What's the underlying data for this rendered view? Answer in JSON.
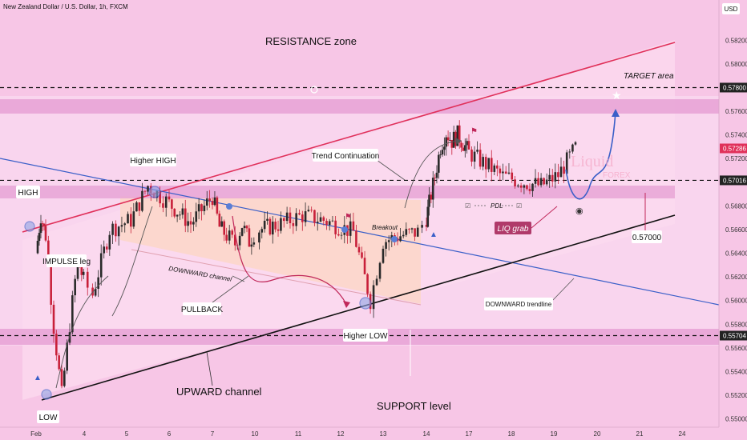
{
  "header": {
    "symbol": "New Zealand Dollar / U.S. Dollar, 1h, FXCM",
    "currency": "USD"
  },
  "watermark": {
    "line1": "Liquid",
    "line2": "FOREX"
  },
  "chart_data": {
    "type": "candlestick",
    "y_ticks": [
      0.55,
      0.552,
      0.554,
      0.556,
      0.558,
      0.56,
      0.562,
      0.564,
      0.566,
      0.568,
      0.57,
      0.572,
      0.574,
      0.576,
      0.578,
      0.58,
      0.582,
      0.584
    ],
    "y_tick_labels": [
      "0.55000",
      "0.55200",
      "0.55400",
      "0.55600",
      "0.55800",
      "0.56000",
      "0.56200",
      "0.56400",
      "0.56600",
      "0.56800",
      "0.57000",
      "0.57200",
      "0.57400",
      "0.57600",
      "0.57800",
      "0.58000",
      "0.58200",
      "0.58400"
    ],
    "ylim": [
      0.5493,
      0.5854
    ],
    "x_ticks": [
      {
        "label": "Feb",
        "day": 1
      },
      {
        "label": "4",
        "day": 4
      },
      {
        "label": "5",
        "day": 5
      },
      {
        "label": "6",
        "day": 6
      },
      {
        "label": "7",
        "day": 7
      },
      {
        "label": "10",
        "day": 10
      },
      {
        "label": "11",
        "day": 11
      },
      {
        "label": "12",
        "day": 12
      },
      {
        "label": "13",
        "day": 13
      },
      {
        "label": "14",
        "day": 14
      },
      {
        "label": "17",
        "day": 17
      },
      {
        "label": "18",
        "day": 18
      },
      {
        "label": "19",
        "day": 19
      },
      {
        "label": "20",
        "day": 20
      },
      {
        "label": "21",
        "day": 21
      },
      {
        "label": "24",
        "day": 24
      }
    ],
    "price_tags": [
      {
        "label": "0.57800",
        "value": 0.578,
        "style": "dark"
      },
      {
        "label": "0.57286",
        "value": 0.57286,
        "style": "red"
      },
      {
        "label": "0.57016",
        "value": 0.57016,
        "style": "dark"
      },
      {
        "label": "0.55704",
        "value": 0.55704,
        "style": "dark"
      }
    ],
    "key_levels": [
      0.578,
      0.57016,
      0.55704
    ],
    "price_path": [
      [
        1,
        0.564
      ],
      [
        1.3,
        0.5672
      ],
      [
        1.6,
        0.5655
      ],
      [
        2.1,
        0.5578
      ],
      [
        2.6,
        0.552
      ],
      [
        3.1,
        0.558
      ],
      [
        3.6,
        0.5635
      ],
      [
        4.2,
        0.5605
      ],
      [
        4.6,
        0.566
      ],
      [
        5.1,
        0.5668
      ],
      [
        5.5,
        0.5697
      ],
      [
        6.0,
        0.5682
      ],
      [
        6.5,
        0.5665
      ],
      [
        7.0,
        0.5688
      ],
      [
        7.5,
        0.5662
      ],
      [
        8.0,
        0.5655
      ],
      [
        8.6,
        0.5648
      ],
      [
        9.1,
        0.5664
      ],
      [
        9.6,
        0.565
      ],
      [
        10.1,
        0.566
      ],
      [
        10.6,
        0.5665
      ],
      [
        11.1,
        0.5672
      ],
      [
        11.6,
        0.5668
      ],
      [
        12.3,
        0.5658
      ],
      [
        12.7,
        0.56
      ],
      [
        13.0,
        0.565
      ],
      [
        13.4,
        0.5655
      ],
      [
        13.8,
        0.5658
      ],
      [
        14.2,
        0.5682
      ],
      [
        14.6,
        0.5705
      ],
      [
        15.0,
        0.573
      ],
      [
        15.4,
        0.5742
      ],
      [
        15.8,
        0.5735
      ],
      [
        16.2,
        0.574
      ],
      [
        16.6,
        0.5733
      ],
      [
        17.0,
        0.5725
      ],
      [
        17.4,
        0.5715
      ],
      [
        17.8,
        0.5705
      ],
      [
        18.3,
        0.57
      ],
      [
        18.7,
        0.5697
      ],
      [
        19.1,
        0.5706
      ],
      [
        19.5,
        0.5729
      ]
    ],
    "annotations": {
      "resistance_zone": "RESISTANCE zone",
      "target_area": "TARGET area",
      "higher_high": "Higher HIGH",
      "high": "HIGH",
      "trend_continuation": "Trend Continuation",
      "impulse_leg": "IMPULSE leg",
      "downward_channel": "DOWNWARD channel",
      "pullback": "PULLBACK",
      "breakout": "Breakout",
      "pdl": "PDL",
      "liq_grab": "LIQ grab",
      "level_box": "0.57000",
      "downward_trendline": "DOWNWARD trendline",
      "higher_low": "Higher LOW",
      "upward_channel": "UPWARD channel",
      "support_level": "SUPPORT level",
      "low": "LOW"
    }
  }
}
